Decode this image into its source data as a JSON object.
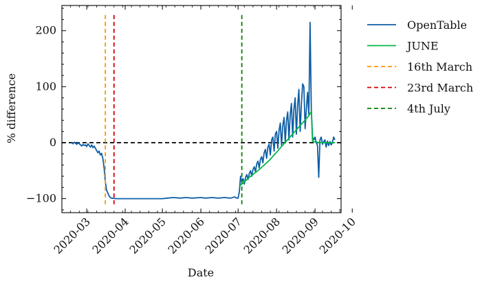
{
  "chart_data": {
    "type": "line",
    "title": "",
    "xlabel": "Date",
    "ylabel": "% difference",
    "x_ticks": [
      "2020-03",
      "2020-04",
      "2020-05",
      "2020-06",
      "2020-07",
      "2020-08",
      "2020-09",
      "2020-10"
    ],
    "y_ticks": [
      {
        "value": -100,
        "label": "−100"
      },
      {
        "value": 0,
        "label": "0"
      },
      {
        "value": 100,
        "label": "100"
      },
      {
        "value": 200,
        "label": "200"
      }
    ],
    "xlim": [
      "2020-02-10",
      "2020-09-22"
    ],
    "ylim": [
      -125,
      245
    ],
    "legend_placement": "upper-right-outside",
    "grid": false,
    "reference_line": {
      "y": 0,
      "style": "dashed",
      "color": "#000000"
    },
    "series": [
      {
        "name": "OpenTable",
        "style": "solid",
        "color": "#0C5DA5",
        "points": [
          [
            "2020-02-18",
            0
          ],
          [
            "2020-02-19",
            -2
          ],
          [
            "2020-02-20",
            1
          ],
          [
            "2020-02-21",
            -1
          ],
          [
            "2020-02-22",
            -3
          ],
          [
            "2020-02-23",
            0
          ],
          [
            "2020-02-24",
            -2
          ],
          [
            "2020-02-25",
            -4
          ],
          [
            "2020-02-26",
            -6
          ],
          [
            "2020-02-27",
            -3
          ],
          [
            "2020-02-28",
            -5
          ],
          [
            "2020-02-29",
            -4
          ],
          [
            "2020-03-01",
            -7
          ],
          [
            "2020-03-02",
            -2
          ],
          [
            "2020-03-03",
            -5
          ],
          [
            "2020-03-04",
            -8
          ],
          [
            "2020-03-05",
            -4
          ],
          [
            "2020-03-06",
            -9
          ],
          [
            "2020-03-07",
            -6
          ],
          [
            "2020-03-08",
            -10
          ],
          [
            "2020-03-09",
            -14
          ],
          [
            "2020-03-10",
            -18
          ],
          [
            "2020-03-11",
            -15
          ],
          [
            "2020-03-12",
            -22
          ],
          [
            "2020-03-13",
            -19
          ],
          [
            "2020-03-14",
            -28
          ],
          [
            "2020-03-15",
            -45
          ],
          [
            "2020-03-16",
            -70
          ],
          [
            "2020-03-17",
            -85
          ],
          [
            "2020-03-18",
            -90
          ],
          [
            "2020-03-19",
            -95
          ],
          [
            "2020-03-20",
            -98
          ],
          [
            "2020-03-21",
            -99
          ],
          [
            "2020-03-25",
            -100
          ],
          [
            "2020-04-01",
            -100
          ],
          [
            "2020-04-15",
            -100
          ],
          [
            "2020-05-01",
            -100
          ],
          [
            "2020-05-05",
            -99
          ],
          [
            "2020-05-10",
            -98
          ],
          [
            "2020-05-15",
            -99
          ],
          [
            "2020-05-20",
            -98
          ],
          [
            "2020-05-25",
            -99
          ],
          [
            "2020-06-01",
            -98
          ],
          [
            "2020-06-05",
            -99
          ],
          [
            "2020-06-10",
            -98
          ],
          [
            "2020-06-15",
            -99
          ],
          [
            "2020-06-20",
            -98
          ],
          [
            "2020-06-25",
            -99
          ],
          [
            "2020-06-28",
            -97
          ],
          [
            "2020-06-30",
            -99
          ],
          [
            "2020-07-01",
            -99
          ],
          [
            "2020-07-02",
            -88
          ],
          [
            "2020-07-03",
            -60
          ],
          [
            "2020-07-04",
            -70
          ],
          [
            "2020-07-05",
            -64
          ],
          [
            "2020-07-06",
            -74
          ],
          [
            "2020-07-07",
            -62
          ],
          [
            "2020-07-08",
            -57
          ],
          [
            "2020-07-09",
            -66
          ],
          [
            "2020-07-10",
            -55
          ],
          [
            "2020-07-11",
            -50
          ],
          [
            "2020-07-12",
            -60
          ],
          [
            "2020-07-13",
            -48
          ],
          [
            "2020-07-14",
            -43
          ],
          [
            "2020-07-15",
            -52
          ],
          [
            "2020-07-16",
            -38
          ],
          [
            "2020-07-17",
            -33
          ],
          [
            "2020-07-18",
            -45
          ],
          [
            "2020-07-19",
            -30
          ],
          [
            "2020-07-20",
            -25
          ],
          [
            "2020-07-21",
            -36
          ],
          [
            "2020-07-22",
            -18
          ],
          [
            "2020-07-23",
            -12
          ],
          [
            "2020-07-24",
            -28
          ],
          [
            "2020-07-25",
            -8
          ],
          [
            "2020-07-26",
            -3
          ],
          [
            "2020-07-27",
            -22
          ],
          [
            "2020-07-28",
            5
          ],
          [
            "2020-07-29",
            10
          ],
          [
            "2020-07-30",
            -15
          ],
          [
            "2020-07-31",
            15
          ],
          [
            "2020-08-01",
            20
          ],
          [
            "2020-08-02",
            -10
          ],
          [
            "2020-08-03",
            22
          ],
          [
            "2020-08-04",
            35
          ],
          [
            "2020-08-05",
            -5
          ],
          [
            "2020-08-06",
            30
          ],
          [
            "2020-08-07",
            45
          ],
          [
            "2020-08-08",
            0
          ],
          [
            "2020-08-09",
            40
          ],
          [
            "2020-08-10",
            55
          ],
          [
            "2020-08-11",
            5
          ],
          [
            "2020-08-12",
            50
          ],
          [
            "2020-08-13",
            70
          ],
          [
            "2020-08-14",
            10
          ],
          [
            "2020-08-15",
            60
          ],
          [
            "2020-08-16",
            80
          ],
          [
            "2020-08-17",
            15
          ],
          [
            "2020-08-18",
            65
          ],
          [
            "2020-08-19",
            95
          ],
          [
            "2020-08-20",
            20
          ],
          [
            "2020-08-21",
            70
          ],
          [
            "2020-08-22",
            105
          ],
          [
            "2020-08-23",
            100
          ],
          [
            "2020-08-24",
            25
          ],
          [
            "2020-08-25",
            60
          ],
          [
            "2020-08-26",
            90
          ],
          [
            "2020-08-27",
            50
          ],
          [
            "2020-08-28",
            215
          ],
          [
            "2020-08-29",
            60
          ],
          [
            "2020-08-30",
            10
          ],
          [
            "2020-08-31",
            5
          ],
          [
            "2020-09-01",
            10
          ],
          [
            "2020-09-02",
            0
          ],
          [
            "2020-09-03",
            -5
          ],
          [
            "2020-09-04",
            -62
          ],
          [
            "2020-09-05",
            5
          ],
          [
            "2020-09-06",
            10
          ],
          [
            "2020-09-07",
            -3
          ],
          [
            "2020-09-08",
            2
          ],
          [
            "2020-09-09",
            5
          ],
          [
            "2020-09-10",
            -8
          ],
          [
            "2020-09-11",
            3
          ],
          [
            "2020-09-12",
            -5
          ],
          [
            "2020-09-13",
            2
          ],
          [
            "2020-09-14",
            -4
          ],
          [
            "2020-09-15",
            0
          ],
          [
            "2020-09-16",
            10
          ],
          [
            "2020-09-17",
            5
          ]
        ]
      },
      {
        "name": "JUNE",
        "style": "solid",
        "color": "#00B945",
        "points": [
          [
            "2020-07-02",
            -78
          ],
          [
            "2020-07-10",
            -62
          ],
          [
            "2020-07-18",
            -48
          ],
          [
            "2020-07-26",
            -32
          ],
          [
            "2020-08-03",
            -12
          ],
          [
            "2020-08-11",
            8
          ],
          [
            "2020-08-19",
            28
          ],
          [
            "2020-08-27",
            48
          ],
          [
            "2020-08-29",
            56
          ],
          [
            "2020-08-30",
            2
          ],
          [
            "2020-09-05",
            0
          ],
          [
            "2020-09-12",
            0
          ],
          [
            "2020-09-17",
            0
          ]
        ]
      }
    ],
    "vlines": [
      {
        "name": "16th March",
        "x": "2020-03-16",
        "color": "#FF9500",
        "style": "dashed"
      },
      {
        "name": "23rd March",
        "x": "2020-03-23",
        "color": "#D00000",
        "style": "dashed"
      },
      {
        "name": "4th July",
        "x": "2020-07-04",
        "color": "#008000",
        "style": "dashed"
      }
    ]
  }
}
